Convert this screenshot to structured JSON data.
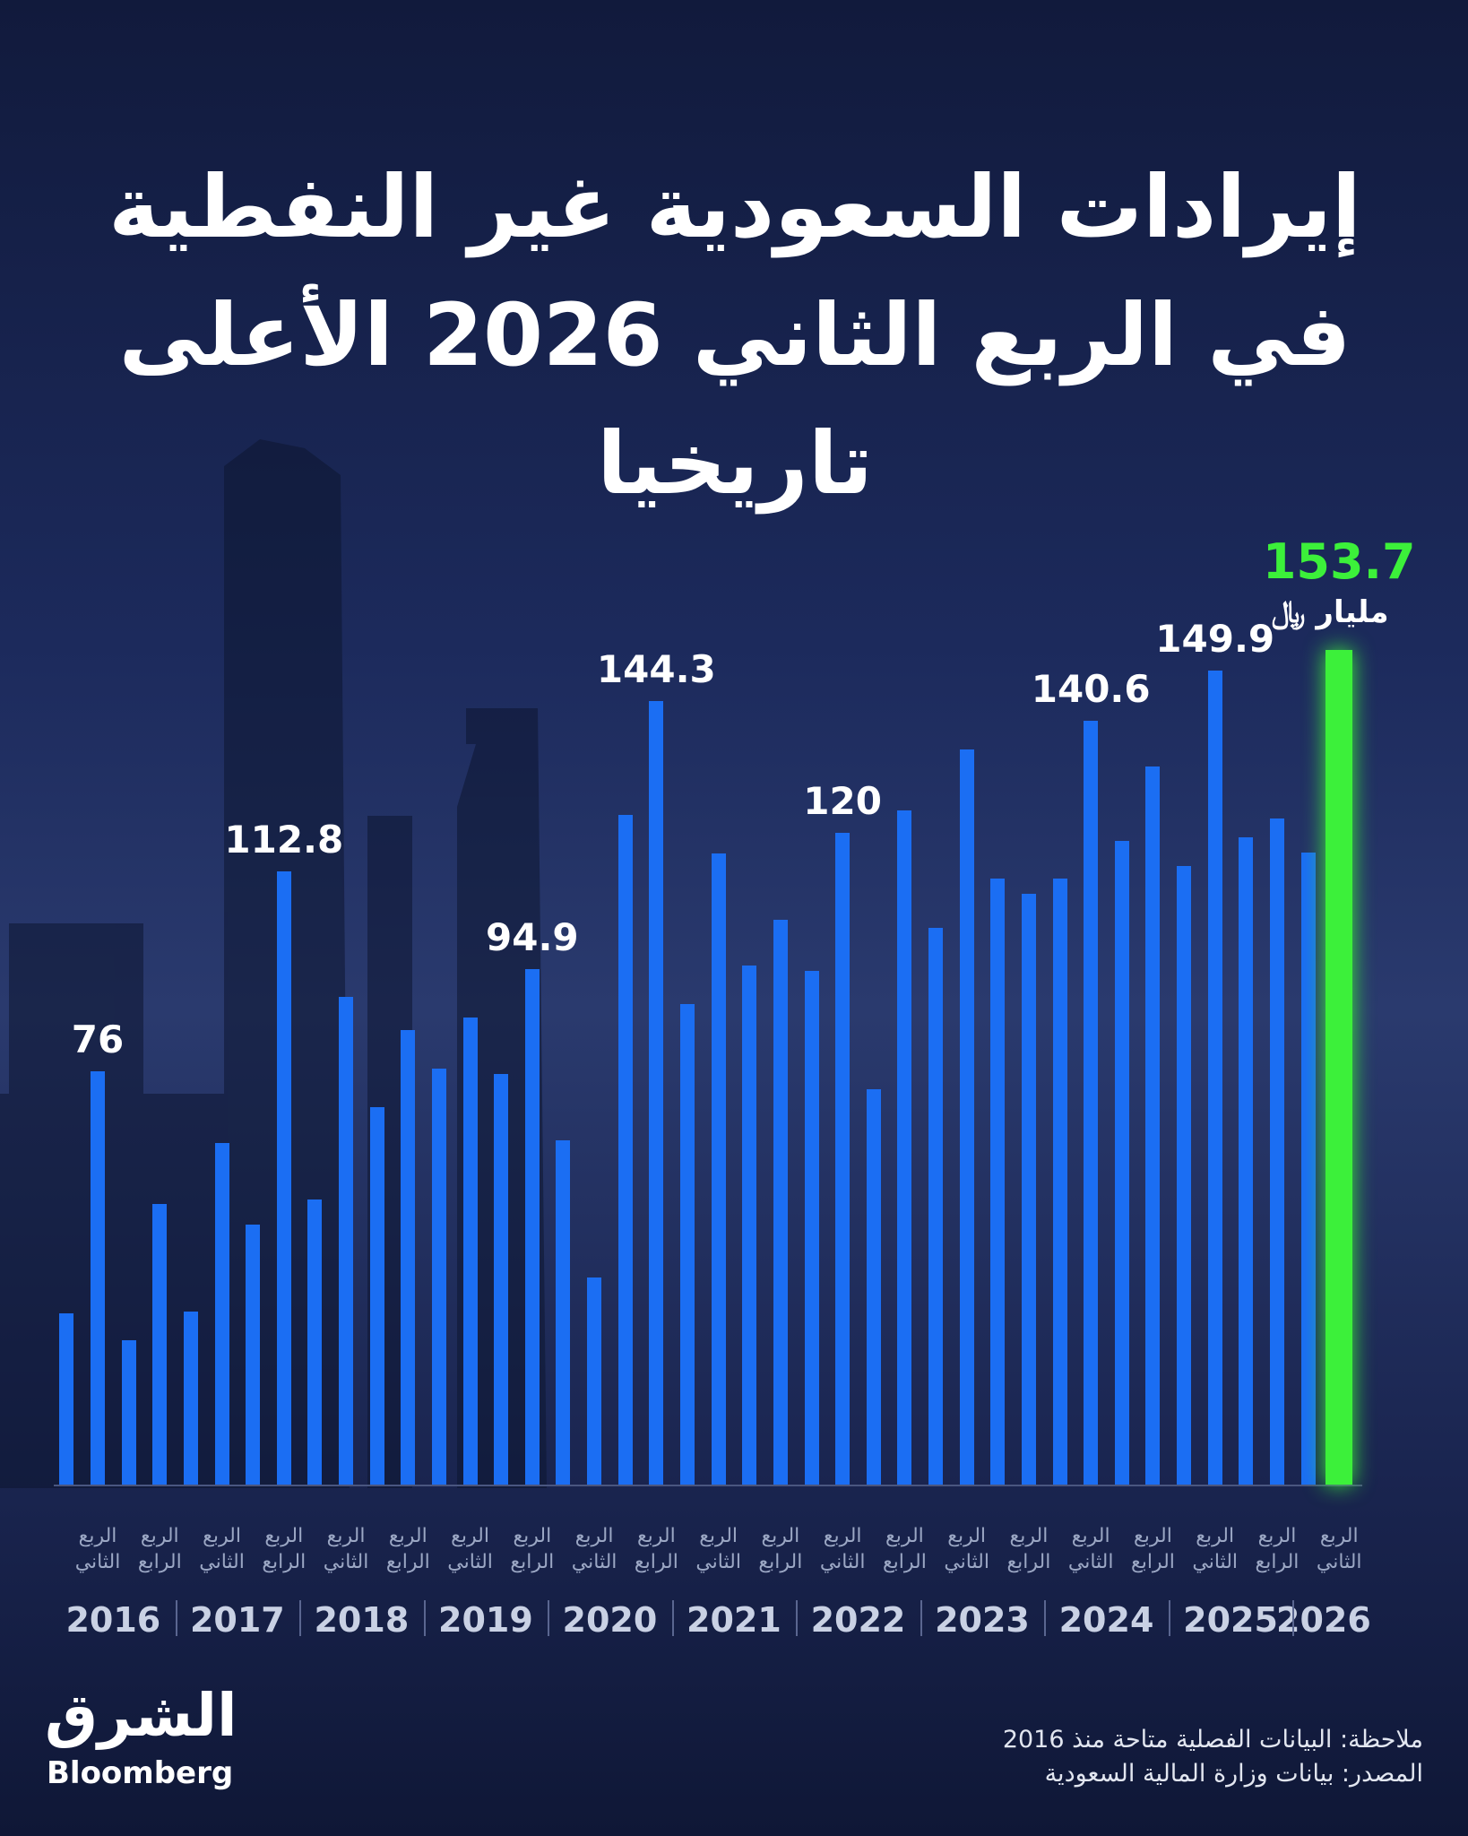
{
  "chart_data": {
    "type": "bar",
    "title": [
      "إيرادات السعودية غير النفطية",
      "في الربع الثاني 2026 الأعلى",
      "تاريخيا"
    ],
    "unit": "مليار ﷼",
    "categories": [
      null,
      "الربع الثاني",
      null,
      "الربع الرابع",
      null,
      "الربع الثاني",
      null,
      "الربع الرابع",
      null,
      "الربع الثاني",
      null,
      "الربع الرابع",
      null,
      "الربع الثاني",
      null,
      "الربع الرابع",
      null,
      "الربع الثاني",
      null,
      "الربع الرابع",
      null,
      "الربع الثاني",
      null,
      "الربع الرابع",
      null,
      "الربع الثاني",
      null,
      "الربع الرابع",
      null,
      "الربع الثاني",
      null,
      "الربع الرابع",
      null,
      "الربع الثاني",
      null,
      "الربع الرابع",
      null,
      "الربع الثاني",
      null,
      "الربع الرابع",
      null,
      "الربع الثاني"
    ],
    "years": [
      "2016",
      "2017",
      "2018",
      "2019",
      "2020",
      "2021",
      "2022",
      "2023",
      "2024",
      "2025",
      "2026"
    ],
    "values": [
      31.5,
      76,
      26.5,
      51.7,
      31.9,
      62.9,
      47.8,
      112.8,
      52.4,
      89.7,
      69.4,
      83.6,
      76.5,
      86,
      75.6,
      94.9,
      63.4,
      38.1,
      123.3,
      144.3,
      88.4,
      116.2,
      95.5,
      103.9,
      94.6,
      120,
      72.8,
      124.1,
      102.4,
      135.3,
      111.6,
      108.8,
      111.6,
      140.6,
      118.5,
      132.1,
      113.8,
      149.9,
      119.2,
      122.6,
      116.4,
      153.7
    ],
    "value_labels": [
      null,
      "76",
      null,
      null,
      null,
      null,
      null,
      "112.8",
      null,
      null,
      null,
      null,
      null,
      null,
      null,
      "94.9",
      null,
      null,
      null,
      "144.3",
      null,
      null,
      null,
      null,
      null,
      "120",
      null,
      null,
      null,
      null,
      null,
      null,
      null,
      "140.6",
      null,
      null,
      null,
      "149.9",
      null,
      null,
      null,
      "153.7"
    ],
    "colors": [
      "#1b6ef3",
      "#1b6ef3",
      "#1b6ef3",
      "#1b6ef3",
      "#1b6ef3",
      "#1b6ef3",
      "#1b6ef3",
      "#1b6ef3",
      "#1b6ef3",
      "#1b6ef3",
      "#1b6ef3",
      "#1b6ef3",
      "#1b6ef3",
      "#1b6ef3",
      "#1b6ef3",
      "#1b6ef3",
      "#1b6ef3",
      "#1b6ef3",
      "#1b6ef3",
      "#1b6ef3",
      "#1b6ef3",
      "#1b6ef3",
      "#1b6ef3",
      "#1b6ef3",
      "#1b6ef3",
      "#1b6ef3",
      "#1b6ef3",
      "#1b6ef3",
      "#1b6ef3",
      "#1b6ef3",
      "#1b6ef3",
      "#1b6ef3",
      "#1b6ef3",
      "#1b6ef3",
      "#1b6ef3",
      "#1b6ef3",
      "#1b6ef3",
      "#1b6ef3",
      "#1b6ef3",
      "#1b6ef3",
      "#1b6ef3",
      "#3cf03a"
    ],
    "notes": [
      "ملاحظة: البيانات الفصلية متاحة منذ 2016",
      "المصدر: بيانات وزارة المالية السعودية"
    ],
    "logo": [
      "الشرق",
      "Bloomberg"
    ]
  }
}
